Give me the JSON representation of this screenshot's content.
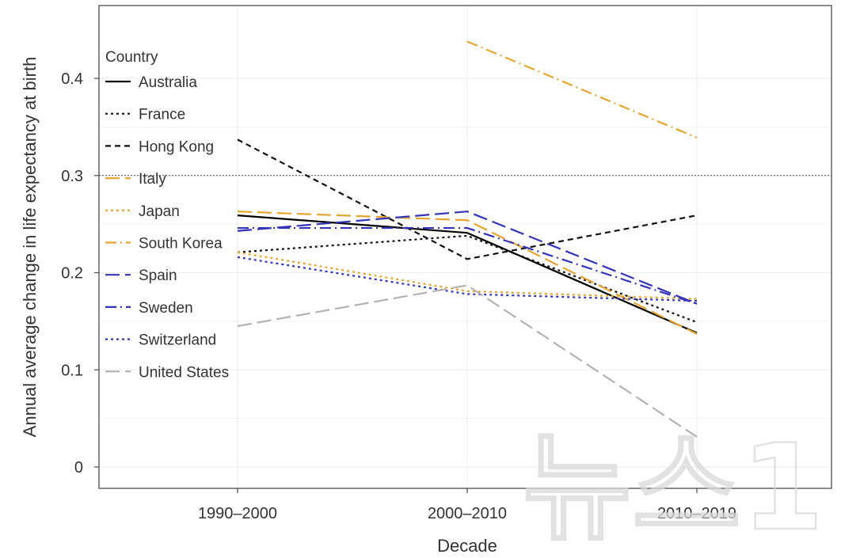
{
  "chart_data": {
    "type": "line",
    "title": "",
    "xlabel": "Decade",
    "ylabel": "Annual average change in life expectancy at birth",
    "categories": [
      "1990–2000",
      "2000–2010",
      "2010–2019"
    ],
    "yticks": [
      0,
      0.1,
      0.2,
      0.3,
      0.4
    ],
    "ytick_labels": [
      "0",
      "0.1",
      "0.2",
      "0.3",
      "0.4"
    ],
    "ylim": [
      -0.022,
      0.475
    ],
    "reference_line": 0.3,
    "legend_title": "Country",
    "legend_position": "top-left",
    "grid": true,
    "series": [
      {
        "name": "Australia",
        "color": "#000000",
        "dash": "solid",
        "values": [
          0.259,
          0.241,
          0.138
        ]
      },
      {
        "name": "France",
        "color": "#111111",
        "dash": "dotted",
        "values": [
          0.221,
          0.238,
          0.149
        ]
      },
      {
        "name": "Hong Kong",
        "color": "#111111",
        "dash": "dashed",
        "values": [
          0.337,
          0.214,
          0.259
        ]
      },
      {
        "name": "Italy",
        "color": "#e6a531",
        "dash": "longdash",
        "values": [
          0.263,
          0.254,
          0.137
        ]
      },
      {
        "name": "Japan",
        "color": "#e6a531",
        "dash": "dotted",
        "values": [
          0.221,
          0.181,
          0.173
        ]
      },
      {
        "name": "South Korea",
        "color": "#e6a531",
        "dash": "dashdot",
        "values": [
          null,
          0.438,
          0.339
        ]
      },
      {
        "name": "Spain",
        "color": "#3434b8",
        "dash": "longdash",
        "values": [
          0.243,
          0.263,
          0.168
        ]
      },
      {
        "name": "Sweden",
        "color": "#3434b8",
        "dash": "dashdot",
        "values": [
          0.246,
          0.246,
          0.168
        ]
      },
      {
        "name": "Switzerland",
        "color": "#3434b8",
        "dash": "dotted",
        "values": [
          0.216,
          0.178,
          0.171
        ]
      },
      {
        "name": "United States",
        "color": "#b3b3b3",
        "dash": "longdash",
        "values": [
          0.145,
          0.187,
          0.031
        ]
      }
    ]
  },
  "watermark": {
    "text": "뉴스1",
    "color": "#d9d9d9"
  }
}
